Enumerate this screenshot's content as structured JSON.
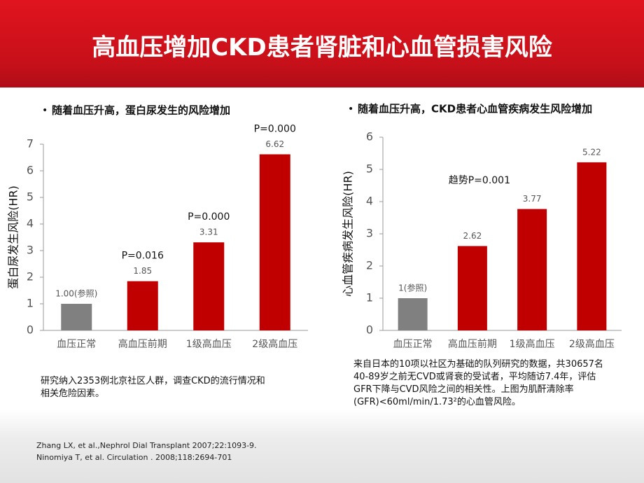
{
  "title": "高血压增加CKD患者肾脏和心血管损害风险",
  "chart_data": [
    {
      "type": "bar",
      "title": "随着血压升高，蛋白尿发生的风险增加",
      "ylabel": "蛋白尿发生风险(HR)",
      "categories": [
        "血压正常",
        "高血压前期",
        "1级高血压",
        "2级高血压"
      ],
      "values": [
        1,
        1.85,
        3.31,
        6.62
      ],
      "value_labels": [
        "1.00(参照)",
        "1.85",
        "3.31",
        "6.62"
      ],
      "annotations": [
        null,
        "P=0.016",
        "P=0.000",
        "P=0.000"
      ],
      "colors": [
        "#808080",
        "#c00000",
        "#c00000",
        "#c00000"
      ],
      "ylim": [
        0,
        7
      ],
      "yticks": [
        0,
        1,
        2,
        3,
        4,
        5,
        6,
        7
      ]
    },
    {
      "type": "bar",
      "title": "随着血压升高，CKD患者心血管疾病发生风险增加",
      "ylabel": "心血管疾病发生风险(HR)",
      "categories": [
        "血压正常",
        "高血压前期",
        "1级高血压",
        "2级高血压"
      ],
      "values": [
        1,
        2.62,
        3.77,
        5.22
      ],
      "value_labels": [
        "1(参照)",
        "2.62",
        "3.77",
        "5.22"
      ],
      "annotation": "趋势P=0.001",
      "colors": [
        "#808080",
        "#c00000",
        "#c00000",
        "#c00000"
      ],
      "ylim": [
        0,
        6
      ],
      "yticks": [
        0,
        1,
        2,
        3,
        4,
        5,
        6
      ]
    }
  ],
  "notes": [
    [
      "研究纳入2353例北京社区人群，调查CKD的流行情况和",
      "相关危险因素。"
    ],
    [
      "来自日本的10项以社区为基础的队列研究的数据，共30657名",
      "40-89岁之前无CVD或肾衰的受试者，平均随访7.4年，评估",
      "GFR下降与CVD风险之间的相关性。上图为肌酐清除率",
      "(GFR)<60ml/min/1.73²的心血管风险。"
    ]
  ],
  "references": [
    "Zhang LX, et al.,Nephrol Dial Transplant 2007;22:1093-9.",
    "Ninomiya T, et al. Circulation . 2008;118:2694-701"
  ]
}
